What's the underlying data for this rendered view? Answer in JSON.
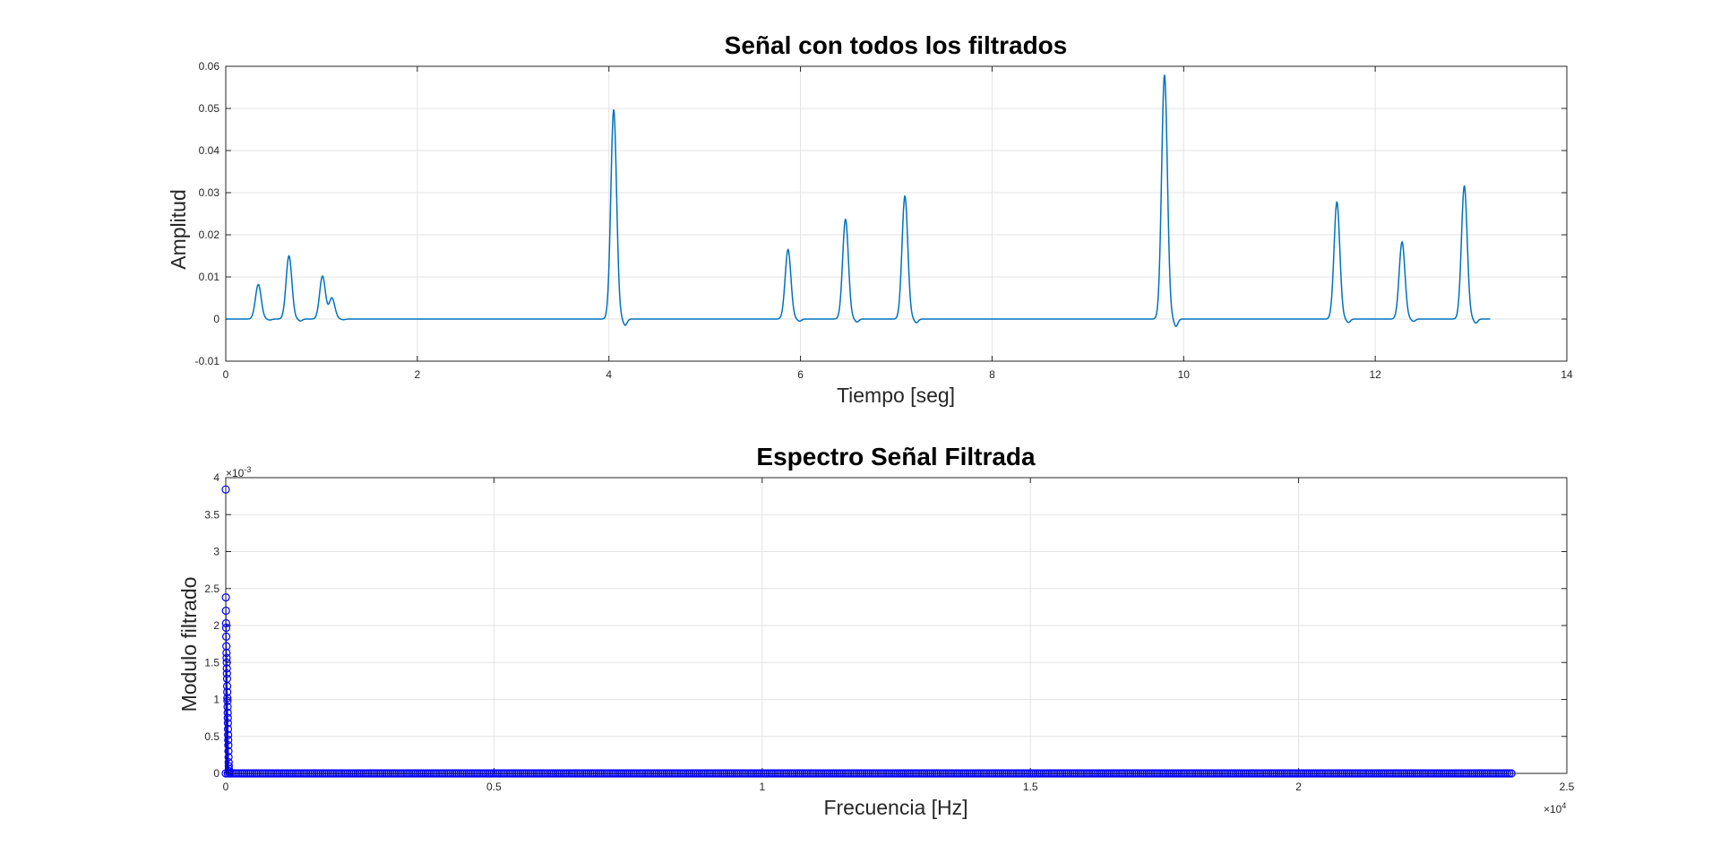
{
  "chart_data": [
    {
      "type": "line",
      "title": "Señal con todos los filtrados",
      "xlabel": "Tiempo [seg]",
      "ylabel": "Amplitud",
      "xlim": [
        0,
        14
      ],
      "ylim": [
        -0.01,
        0.06
      ],
      "xticks": [
        0,
        2,
        4,
        6,
        8,
        10,
        12,
        14
      ],
      "xtick_labels": [
        "0",
        "2",
        "4",
        "6",
        "8",
        "10",
        "12",
        "14"
      ],
      "yticks": [
        -0.01,
        0,
        0.01,
        0.02,
        0.03,
        0.04,
        0.05,
        0.06
      ],
      "ytick_labels": [
        "-0.01",
        "0",
        "0.01",
        "0.02",
        "0.03",
        "0.04",
        "0.05",
        "0.06"
      ],
      "grid": true,
      "line_color": "#0072BD",
      "signal_end": 13.2,
      "pulses": [
        {
          "center": 0.34,
          "peak": 0.0082
        },
        {
          "center": 0.66,
          "peak": 0.015
        },
        {
          "center": 1.01,
          "peak": 0.0102
        },
        {
          "center": 1.11,
          "peak": 0.0052
        },
        {
          "center": 4.05,
          "peak": 0.0497
        },
        {
          "center": 5.87,
          "peak": 0.0165
        },
        {
          "center": 6.47,
          "peak": 0.0237
        },
        {
          "center": 7.09,
          "peak": 0.0292
        },
        {
          "center": 9.8,
          "peak": 0.058
        },
        {
          "center": 11.6,
          "peak": 0.0278
        },
        {
          "center": 12.28,
          "peak": 0.0183
        },
        {
          "center": 12.93,
          "peak": 0.0316
        }
      ]
    },
    {
      "type": "scatter",
      "title": "Espectro Señal Filtrada",
      "xlabel": "Frecuencia [Hz]",
      "ylabel": "Modulo filtrado",
      "xlim": [
        0,
        25000
      ],
      "ylim": [
        0,
        0.004
      ],
      "xticks": [
        0,
        5000,
        10000,
        15000,
        20000,
        25000
      ],
      "xtick_labels": [
        "0",
        "0.5",
        "1",
        "1.5",
        "2",
        "2.5"
      ],
      "x_exponent": {
        "base": "×10",
        "power": "4"
      },
      "yticks": [
        0,
        0.0005,
        0.001,
        0.0015,
        0.002,
        0.0025,
        0.003,
        0.0035,
        0.004
      ],
      "ytick_labels": [
        "0",
        "0.5",
        "1",
        "1.5",
        "2",
        "2.5",
        "3",
        "3.5",
        "4"
      ],
      "y_exponent": {
        "base": "×10",
        "power": "-3"
      },
      "grid": true,
      "marker": "circle",
      "marker_color": "#0000FF",
      "x_max_data": 24000,
      "low_freq_values": [
        0.00384,
        0.00238,
        0.0022,
        0.00203,
        0.00197,
        0.00185,
        0.00172,
        0.00163,
        0.00156,
        0.0015,
        0.00142,
        0.00135,
        0.00128,
        0.00118,
        0.0011,
        0.00102,
        0.00098,
        0.0009,
        0.00082,
        0.00075,
        0.00068,
        0.0006,
        0.00052,
        0.00045,
        0.00038,
        0.0003,
        0.00022,
        0.00015,
        0.0001,
        6e-05,
        3e-05,
        1e-05
      ]
    }
  ]
}
